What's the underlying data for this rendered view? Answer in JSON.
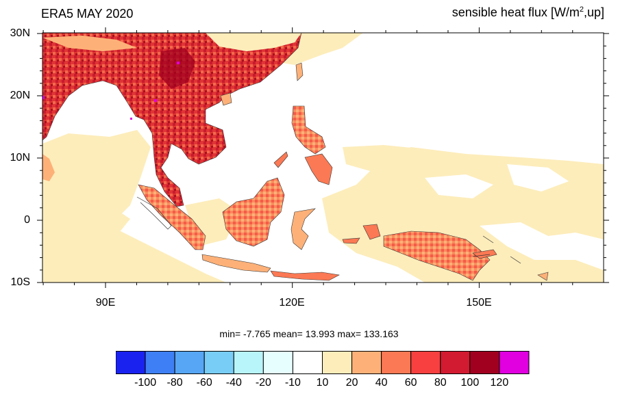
{
  "title_left": "ERA5 MAY 2020",
  "title_right": {
    "prefix": "sensible heat flux [W/m",
    "sup": "2",
    "suffix": ",up]"
  },
  "map": {
    "lat_labels": [
      "30N",
      "20N",
      "10N",
      "0",
      "10S"
    ],
    "lon_labels": [
      "90E",
      "120E",
      "150E"
    ]
  },
  "stats": {
    "text": "min=  -7.765   mean=  13.993   max= 133.163"
  },
  "colorbar": {
    "colors": [
      "#1a22f0",
      "#3e7ff5",
      "#56a6f5",
      "#78cdf6",
      "#b8f5fa",
      "#e6fefe",
      "#ffffff",
      "#fdedbb",
      "#fdb178",
      "#fb7954",
      "#f84040",
      "#d21a30",
      "#a1001f",
      "#e000e0"
    ],
    "labels": [
      "-100",
      "-80",
      "-60",
      "-40",
      "-20",
      "-10",
      "10",
      "20",
      "40",
      "60",
      "80",
      "100",
      "120"
    ]
  }
}
